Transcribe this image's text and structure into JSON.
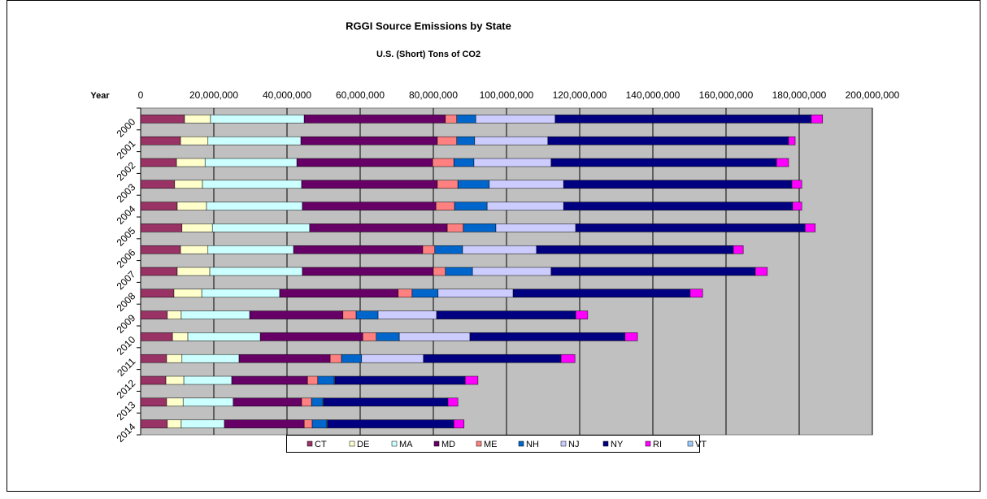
{
  "chart_data": {
    "type": "stacked_barh",
    "title": "RGGI Source Emissions by State",
    "subtitle": "U.S. (Short) Tons of CO2",
    "y_label": "Year",
    "categories": [
      "2000",
      "2001",
      "2002",
      "2003",
      "2004",
      "2005",
      "2006",
      "2007",
      "2008",
      "2009",
      "2010",
      "2011",
      "2012",
      "2013",
      "2014"
    ],
    "xlim": [
      0,
      200000000
    ],
    "xticks": [
      0,
      {
        "value": 20000000,
        "label": "20,000,000"
      },
      {
        "value": 40000000,
        "label": "40,000,000"
      },
      {
        "value": 60000000,
        "label": "60,000,000"
      },
      {
        "value": 80000000,
        "label": "80,000,000"
      },
      {
        "value": 100000000,
        "label": "100,000,000"
      },
      {
        "value": 120000000,
        "label": "120,000,000"
      },
      {
        "value": 140000000,
        "label": "140,000,000"
      },
      {
        "value": 160000000,
        "label": "160,000,000"
      },
      {
        "value": 180000000,
        "label": "180,000,000"
      },
      {
        "value": 200000000,
        "label": "200,000,000"
      }
    ],
    "grid": true,
    "legend": "bottom",
    "series": [
      {
        "name": "CT",
        "color": "#993366",
        "values": [
          12000000,
          10900000,
          9800000,
          9300000,
          10000000,
          11300000,
          10900000,
          10000000,
          9100000,
          7300000,
          8700000,
          7100000,
          6900000,
          7100000,
          7300000
        ]
      },
      {
        "name": "DE",
        "color": "#FFFFCC",
        "values": [
          7100000,
          7500000,
          7800000,
          7600000,
          8000000,
          8300000,
          7500000,
          8900000,
          7600000,
          3800000,
          4200000,
          4200000,
          4900000,
          4500000,
          3800000
        ]
      },
      {
        "name": "MA",
        "color": "#CCFFFF",
        "values": [
          25600000,
          25400000,
          25100000,
          27100000,
          26200000,
          26600000,
          23400000,
          25300000,
          21300000,
          18700000,
          19800000,
          15600000,
          13100000,
          13700000,
          11800000
        ]
      },
      {
        "name": "MD",
        "color": "#660066",
        "values": [
          38600000,
          37300000,
          37100000,
          37100000,
          36500000,
          37600000,
          35300000,
          35800000,
          32400000,
          25500000,
          28000000,
          24900000,
          20700000,
          18700000,
          21800000
        ]
      },
      {
        "name": "ME",
        "color": "#FF8080",
        "values": [
          3100000,
          5300000,
          5800000,
          5600000,
          5100000,
          4400000,
          3300000,
          3300000,
          3800000,
          3600000,
          3700000,
          3100000,
          2800000,
          2700000,
          2200000
        ]
      },
      {
        "name": "NH",
        "color": "#0066CC",
        "values": [
          5200000,
          4900000,
          5500000,
          8600000,
          8900000,
          8900000,
          7600000,
          7400000,
          7100000,
          6000000,
          6300000,
          5500000,
          4500000,
          3100000,
          4000000
        ]
      },
      {
        "name": "NJ",
        "color": "#CCCCFF",
        "values": [
          21700000,
          20000000,
          21100000,
          20300000,
          20900000,
          21800000,
          20200000,
          21500000,
          20500000,
          16000000,
          19300000,
          16900000,
          200000,
          200000,
          200000
        ]
      },
      {
        "name": "NY",
        "color": "#000080",
        "values": [
          70000000,
          65800000,
          61600000,
          62400000,
          62600000,
          62700000,
          53800000,
          55800000,
          48400000,
          38000000,
          42400000,
          37600000,
          35600000,
          34000000,
          34500000
        ]
      },
      {
        "name": "RI",
        "color": "#FF00FF",
        "values": [
          3100000,
          1800000,
          3300000,
          2700000,
          2500000,
          2800000,
          2700000,
          3300000,
          3400000,
          3300000,
          3400000,
          3800000,
          3500000,
          2700000,
          2800000
        ]
      },
      {
        "name": "VT",
        "color": "#99CCFF",
        "values": [
          0,
          0,
          0,
          0,
          0,
          0,
          0,
          0,
          0,
          0,
          0,
          0,
          0,
          0,
          0
        ]
      }
    ]
  }
}
